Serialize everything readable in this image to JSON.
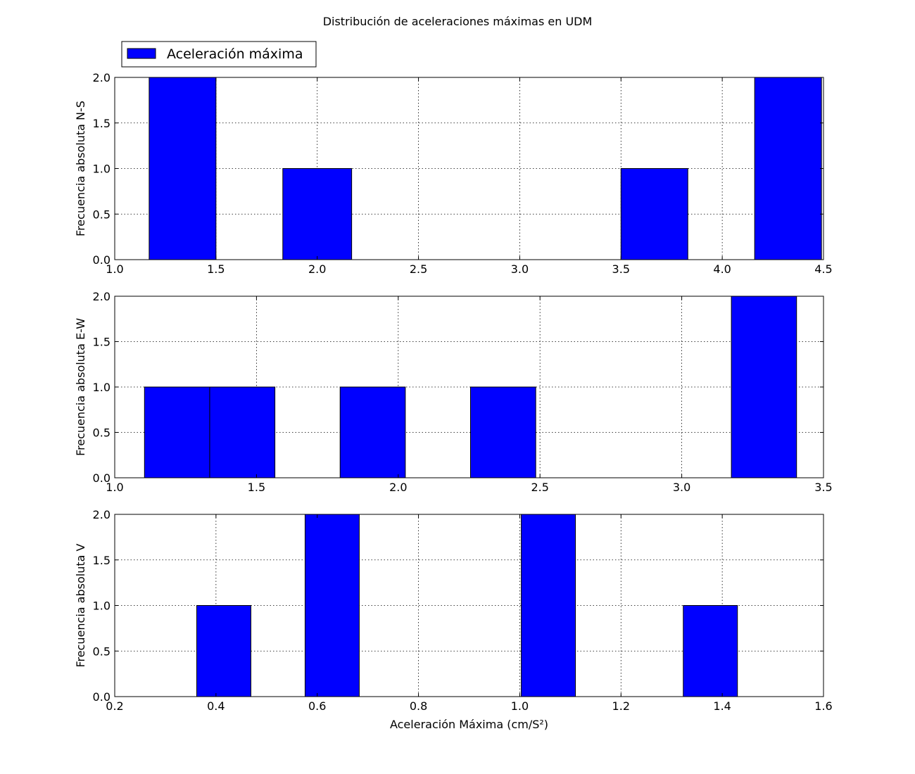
{
  "figure": {
    "title": "Distribución de aceleraciones máximas en UDM",
    "legend": {
      "label": "Aceleración máxima",
      "color": "#0000ff",
      "placement": "top-left"
    }
  },
  "chart_data": [
    {
      "type": "bar",
      "ylabel": "Frecuencia absoluta N-S",
      "xlabel": "",
      "xlim": [
        1.0,
        4.5
      ],
      "ylim": [
        0.0,
        2.0
      ],
      "xticks": [
        "1.0",
        "1.5",
        "2.0",
        "2.5",
        "3.0",
        "3.5",
        "4.0",
        "4.5"
      ],
      "yticks": [
        "0.0",
        "0.5",
        "1.0",
        "1.5",
        "2.0"
      ],
      "grid": true,
      "bars": [
        {
          "x0": 1.17,
          "x1": 1.5,
          "value": 2
        },
        {
          "x0": 1.83,
          "x1": 2.17,
          "value": 1
        },
        {
          "x0": 3.5,
          "x1": 3.83,
          "value": 1
        },
        {
          "x0": 4.16,
          "x1": 4.49,
          "value": 2
        }
      ]
    },
    {
      "type": "bar",
      "ylabel": "Frecuencia absoluta E-W",
      "xlabel": "",
      "xlim": [
        1.0,
        3.5
      ],
      "ylim": [
        0.0,
        2.0
      ],
      "xticks": [
        "1.0",
        "1.5",
        "2.0",
        "2.5",
        "3.0",
        "3.5"
      ],
      "yticks": [
        "0.0",
        "0.5",
        "1.0",
        "1.5",
        "2.0"
      ],
      "grid": true,
      "bars": [
        {
          "x0": 1.105,
          "x1": 1.335,
          "value": 1
        },
        {
          "x0": 1.335,
          "x1": 1.565,
          "value": 1
        },
        {
          "x0": 1.795,
          "x1": 2.025,
          "value": 1
        },
        {
          "x0": 2.255,
          "x1": 2.485,
          "value": 1
        },
        {
          "x0": 3.175,
          "x1": 3.405,
          "value": 2
        }
      ]
    },
    {
      "type": "bar",
      "ylabel": "Frecuencia absoluta V",
      "xlabel": "Aceleración Máxima (cm/S²)",
      "xlim": [
        0.2,
        1.6
      ],
      "ylim": [
        0.0,
        2.0
      ],
      "xticks": [
        "0.2",
        "0.4",
        "0.6",
        "0.8",
        "1.0",
        "1.2",
        "1.4",
        "1.6"
      ],
      "yticks": [
        "0.0",
        "0.5",
        "1.0",
        "1.5",
        "2.0"
      ],
      "grid": true,
      "bars": [
        {
          "x0": 0.362,
          "x1": 0.469,
          "value": 1
        },
        {
          "x0": 0.576,
          "x1": 0.683,
          "value": 2
        },
        {
          "x0": 1.003,
          "x1": 1.11,
          "value": 2
        },
        {
          "x0": 1.323,
          "x1": 1.43,
          "value": 1
        }
      ]
    }
  ]
}
